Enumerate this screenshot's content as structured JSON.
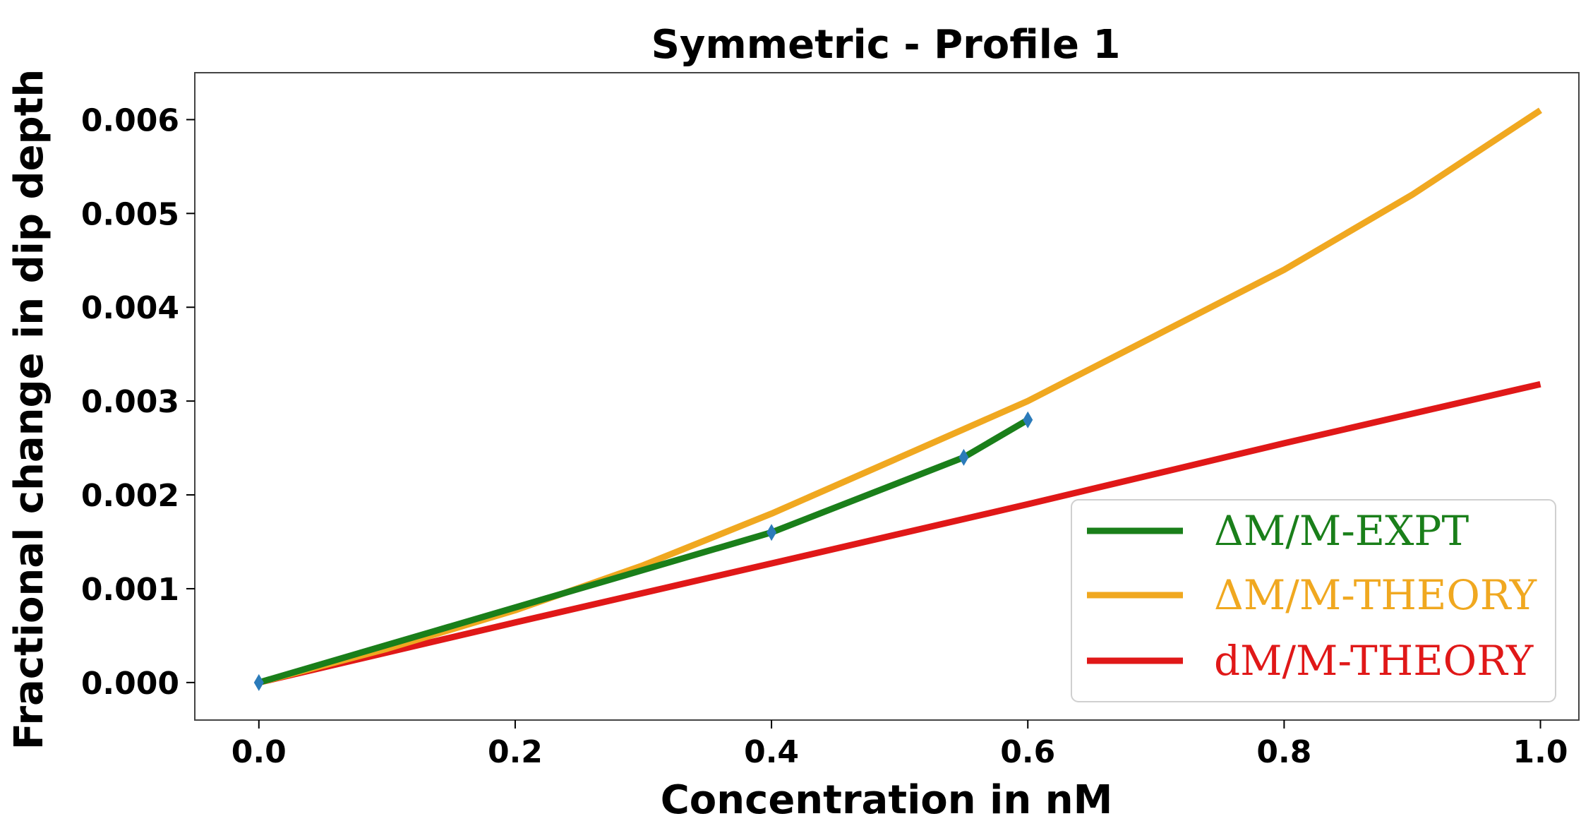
{
  "chart_data": {
    "type": "line",
    "title": "Symmetric - Profile 1",
    "xlabel": "Concentration in nM",
    "ylabel": "Fractional change in dip depth",
    "xlim": [
      -0.05,
      1.03
    ],
    "ylim": [
      -0.0004,
      0.0065
    ],
    "x_ticks": [
      0.0,
      0.2,
      0.4,
      0.6,
      0.8,
      1.0
    ],
    "x_tick_labels": [
      "0.0",
      "0.2",
      "0.4",
      "0.6",
      "0.8",
      "1.0"
    ],
    "y_ticks": [
      0.0,
      0.001,
      0.002,
      0.003,
      0.004,
      0.005,
      0.006
    ],
    "y_tick_labels": [
      "0.000",
      "0.001",
      "0.002",
      "0.003",
      "0.004",
      "0.005",
      "0.006"
    ],
    "grid": false,
    "legend_position": "lower-right",
    "series": [
      {
        "name": "ΔM/M-EXPT",
        "color": "#1a7f1a",
        "x": [
          0.0,
          0.4,
          0.55,
          0.6
        ],
        "y": [
          0.0,
          0.0016,
          0.0024,
          0.0028
        ],
        "markers": true,
        "marker_color": "#2b7bba"
      },
      {
        "name": "ΔM/M-THEORY",
        "color": "#f0a820",
        "x": [
          0.0,
          0.1,
          0.2,
          0.3,
          0.4,
          0.5,
          0.6,
          0.7,
          0.8,
          0.9,
          1.0
        ],
        "y": [
          0.0,
          0.00036,
          0.00077,
          0.00125,
          0.0018,
          0.0024,
          0.003,
          0.0037,
          0.0044,
          0.0052,
          0.0061
        ]
      },
      {
        "name": "dM/M-THEORY",
        "color": "#e01818",
        "x": [
          0.0,
          0.2,
          0.4,
          0.6,
          0.8,
          1.0
        ],
        "y": [
          0.0,
          0.00064,
          0.00127,
          0.0019,
          0.00255,
          0.00318
        ]
      }
    ]
  }
}
